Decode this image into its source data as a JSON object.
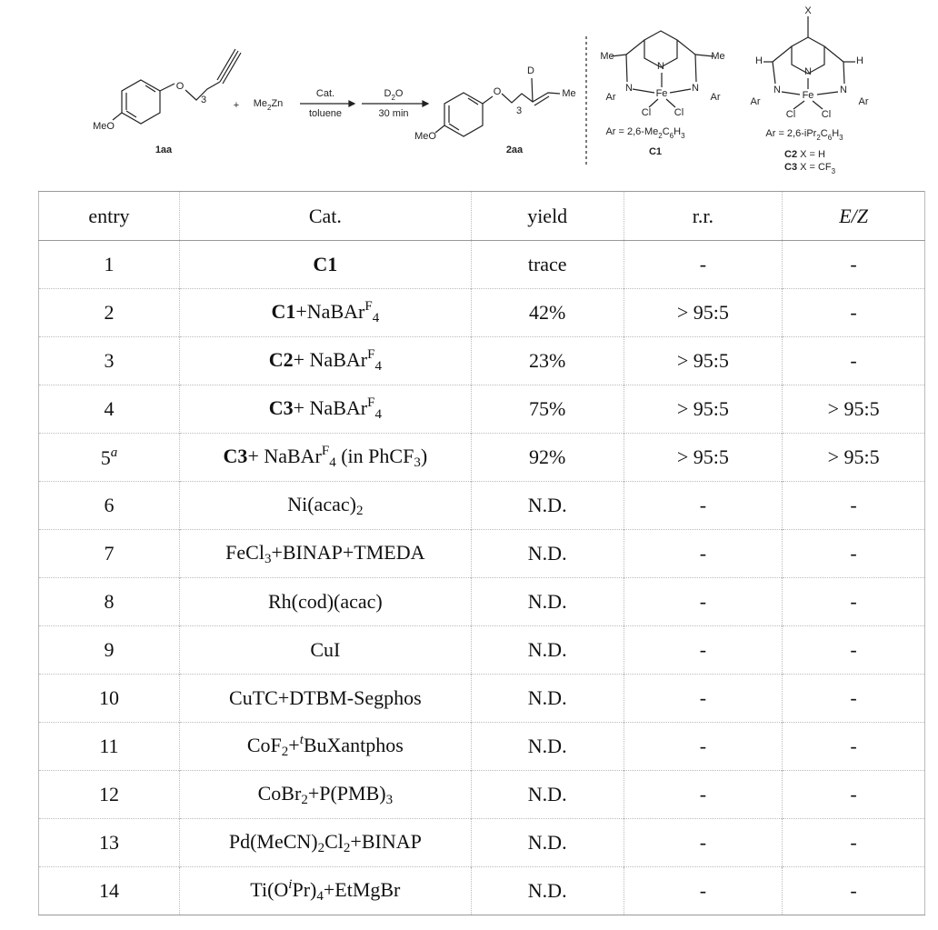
{
  "scheme": {
    "atoms": {
      "O": "O",
      "D": "D",
      "Me": "Me",
      "N": "N",
      "Fe": "Fe",
      "Cl": "Cl",
      "Ar": "Ar",
      "H": "H",
      "X": "X"
    },
    "chain_index": "3",
    "methoxy": "MeO",
    "plus": "+",
    "reagent": [
      "Me",
      {
        "text": "2",
        "style": "sub"
      },
      "Zn"
    ],
    "arrow1_top": "Cat.",
    "arrow1_bottom": "toluene",
    "arrow2_top": [
      "D",
      {
        "text": "2",
        "style": "sub"
      },
      "O"
    ],
    "arrow2_bottom": "30 min",
    "substrate_label": "1aa",
    "product_label": "2aa",
    "c1_ar": [
      "Ar = 2,6-Me",
      {
        "text": "2",
        "style": "sub"
      },
      "C",
      {
        "text": "6",
        "style": "sub"
      },
      "H",
      {
        "text": "3",
        "style": "sub"
      }
    ],
    "c1_label": "C1",
    "c23_ar": [
      "Ar = 2,6-iPr",
      {
        "text": "2",
        "style": "sub"
      },
      "C",
      {
        "text": "6",
        "style": "sub"
      },
      "H",
      {
        "text": "3",
        "style": "sub"
      }
    ],
    "c2_label": [
      {
        "text": "C2",
        "style": "bold"
      },
      " X = H"
    ],
    "c3_label": [
      {
        "text": "C3",
        "style": "bold"
      },
      " X = CF",
      {
        "text": "3",
        "style": "sub"
      }
    ]
  },
  "table": {
    "header": [
      "entry",
      "Cat.",
      "yield",
      "r.r.",
      [
        {
          "text": "E/Z",
          "style": "italic"
        }
      ]
    ],
    "rows": [
      [
        "1",
        [
          {
            "text": "C1",
            "style": "bold"
          }
        ],
        "trace",
        "-",
        "-"
      ],
      [
        "2",
        [
          {
            "text": "C1",
            "style": "bold"
          },
          "+NaBAr",
          {
            "text": "F",
            "style": "sup"
          },
          {
            "text": "4",
            "style": "sub"
          }
        ],
        "42%",
        "> 95:5",
        "-"
      ],
      [
        "3",
        [
          {
            "text": "C2",
            "style": "bold"
          },
          "+ NaBAr",
          {
            "text": "F",
            "style": "sup"
          },
          {
            "text": "4",
            "style": "sub"
          }
        ],
        "23%",
        "> 95:5",
        "-"
      ],
      [
        "4",
        [
          {
            "text": "C3",
            "style": "bold"
          },
          "+ NaBAr",
          {
            "text": "F",
            "style": "sup"
          },
          {
            "text": "4",
            "style": "sub"
          }
        ],
        "75%",
        "> 95:5",
        "> 95:5"
      ],
      [
        [
          "5",
          {
            "text": "a",
            "style": "sup-italic"
          }
        ],
        [
          {
            "text": "C3",
            "style": "bold"
          },
          "+ NaBAr",
          {
            "text": "F",
            "style": "sup"
          },
          {
            "text": "4",
            "style": "sub"
          },
          " (in PhCF",
          {
            "text": "3",
            "style": "sub"
          },
          ")"
        ],
        "92%",
        "> 95:5",
        "> 95:5"
      ],
      [
        "6",
        [
          "Ni(acac)",
          {
            "text": "2",
            "style": "sub"
          }
        ],
        "N.D.",
        "-",
        "-"
      ],
      [
        "7",
        [
          "FeCl",
          {
            "text": "3",
            "style": "sub"
          },
          "+BINAP+TMEDA"
        ],
        "N.D.",
        "-",
        "-"
      ],
      [
        "8",
        "Rh(cod)(acac)",
        "N.D.",
        "-",
        "-"
      ],
      [
        "9",
        "CuI",
        "N.D.",
        "-",
        "-"
      ],
      [
        "10",
        "CuTC+DTBM-Segphos",
        "N.D.",
        "-",
        "-"
      ],
      [
        "11",
        [
          "CoF",
          {
            "text": "2",
            "style": "sub"
          },
          "+",
          {
            "text": "t",
            "style": "sup-italic"
          },
          "BuXantphos"
        ],
        "N.D.",
        "-",
        "-"
      ],
      [
        "12",
        [
          "CoBr",
          {
            "text": "2",
            "style": "sub"
          },
          "+P(PMB)",
          {
            "text": "3",
            "style": "sub"
          }
        ],
        "N.D.",
        "-",
        "-"
      ],
      [
        "13",
        [
          "Pd(MeCN)",
          {
            "text": "2",
            "style": "sub"
          },
          "Cl",
          {
            "text": "2",
            "style": "sub"
          },
          "+BINAP"
        ],
        "N.D.",
        "-",
        "-"
      ],
      [
        "14",
        [
          "Ti(O",
          {
            "text": "i",
            "style": "sup-italic"
          },
          "Pr)",
          {
            "text": "4",
            "style": "sub"
          },
          "+EtMgBr"
        ],
        "N.D.",
        "-",
        "-"
      ]
    ]
  }
}
